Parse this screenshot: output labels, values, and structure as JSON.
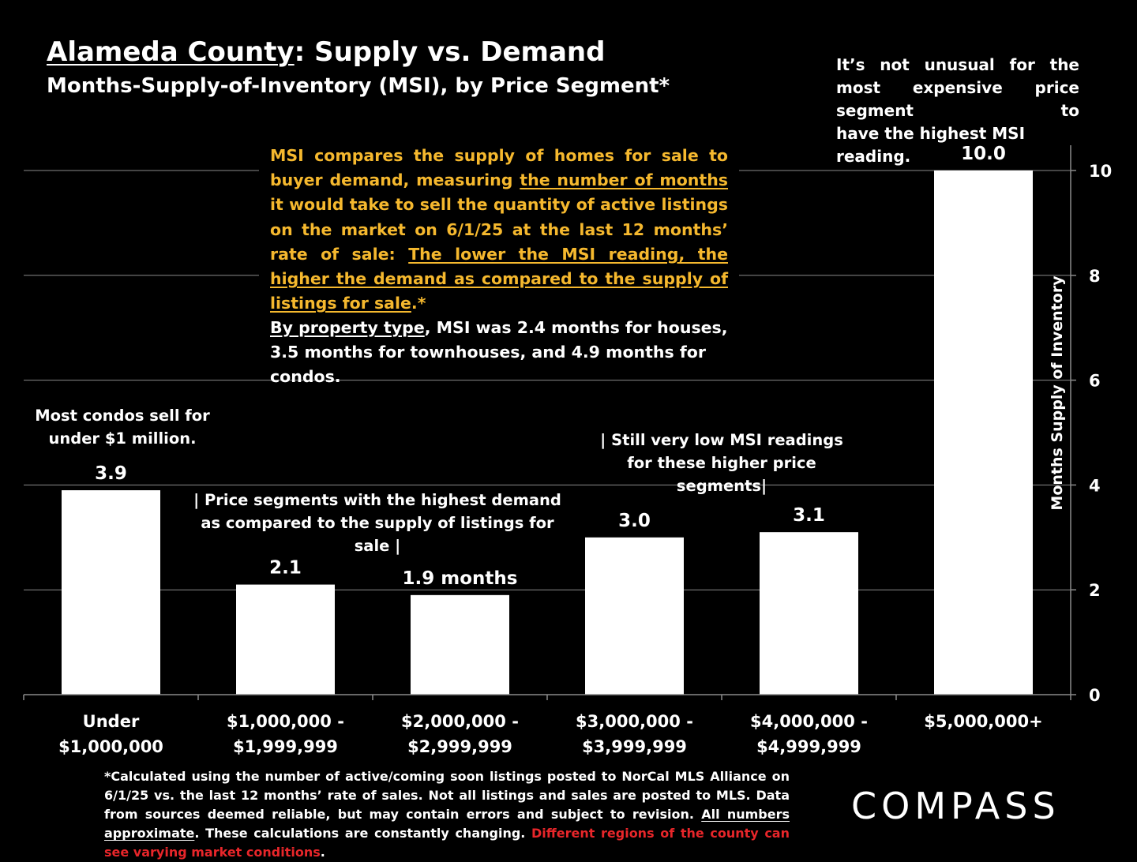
{
  "title_underlined": "Alameda County",
  "title_rest": ": Supply vs. Demand",
  "subtitle": "Months-Supply-of-Inventory (MSI), by Price Segment*",
  "top_note": "It’s not unusual for the most expensive price segment to",
  "top_note_last": "have the highest MSI reading.",
  "msi_box": {
    "p1_a": "MSI compares the supply of homes for sale to buyer demand, measuring ",
    "p1_u": "the number of months",
    "p1_b": " it would take to sell the quantity of active listings on the market on 6/1/25 at the last 12 months’ rate of sale: ",
    "p1_u2": "The lower the MSI reading, the higher the demand as compared to the supply of listings for sale",
    "p1_c": ".*",
    "p2_u": "By property type",
    "p2_rest": ", MSI was 2.4 months for houses, 3.5 months for townhouses, and 4.9 months for condos."
  },
  "annotations": {
    "condos": "Most condos sell for under $1 million.",
    "highest_demand": "| Price segments with the highest demand as compared to the supply of listings for sale |",
    "low_msi": "| Still very low MSI readings for these higher price segments|"
  },
  "footnote": {
    "a": "*Calculated using the number of active/coming soon listings posted to NorCal MLS Alliance on 6/1/25 vs. the last 12 months’ rate of sales. Not all listings and sales are posted to MLS. Data from sources deemed reliable, but may contain errors and subject to revision. ",
    "u": "All numbers approximate",
    "b": ". These calculations are constantly changing. ",
    "red": "Different regions of the county can see varying market conditions",
    "c": "."
  },
  "logo_text": "COMPASS",
  "colors": {
    "bars": "#ffffff",
    "msi_text": "#f5b82e",
    "red_text": "#e8262a",
    "background": "#000000"
  },
  "chart_data": {
    "type": "bar",
    "categories": [
      [
        "Under",
        "$1,000,000"
      ],
      [
        "$1,000,000 -",
        "$1,999,999"
      ],
      [
        "$2,000,000 -",
        "$2,999,999"
      ],
      [
        "$3,000,000 -",
        "$3,999,999"
      ],
      [
        "$4,000,000 -",
        "$4,999,999"
      ],
      [
        "$5,000,000+"
      ]
    ],
    "values": [
      3.9,
      2.1,
      1.9,
      3.0,
      3.1,
      10.0
    ],
    "data_labels": [
      "3.9",
      "2.1",
      "1.9 months",
      "3.0",
      "3.1",
      "10.0"
    ],
    "ylabel": "Months Supply of Inventory",
    "ylim": [
      0,
      10
    ],
    "yticks": [
      0,
      2,
      4,
      6,
      8,
      10
    ],
    "y_axis_side": "right",
    "grid": true
  }
}
